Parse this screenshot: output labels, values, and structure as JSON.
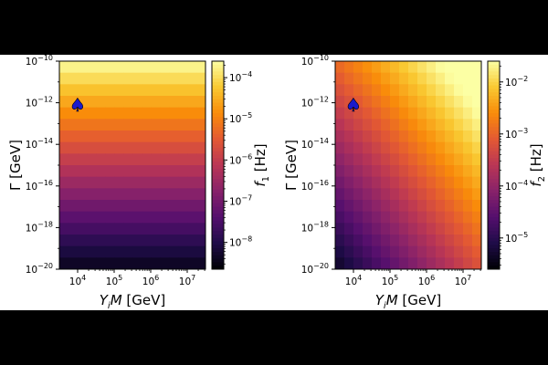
{
  "chart_data": [
    {
      "type": "heatmap",
      "id": "left",
      "xlabel": "Y_iM [GeV]",
      "ylabel": "Γ [GeV]",
      "x_log_range": [
        3.5,
        7.5
      ],
      "y_log_range": [
        -20,
        -10
      ],
      "x_ticks": [
        {
          "base": "10",
          "exp": "4",
          "value": 4
        },
        {
          "base": "10",
          "exp": "5",
          "value": 5
        },
        {
          "base": "10",
          "exp": "6",
          "value": 6
        },
        {
          "base": "10",
          "exp": "7",
          "value": 7
        }
      ],
      "y_ticks": [
        {
          "base": "10",
          "exp": "−10",
          "value": -10
        },
        {
          "base": "10",
          "exp": "−12",
          "value": -12
        },
        {
          "base": "10",
          "exp": "−14",
          "value": -14
        },
        {
          "base": "10",
          "exp": "−16",
          "value": -16
        },
        {
          "base": "10",
          "exp": "−18",
          "value": -18
        },
        {
          "base": "10",
          "exp": "−20",
          "value": -20
        }
      ],
      "colorbar": {
        "label_main": "f",
        "label_sub": "1",
        "label_unit": " [Hz]",
        "log_range": [
          -8.65,
          -3.6
        ],
        "ticks": [
          {
            "base": "10",
            "exp": "−4",
            "value": -4
          },
          {
            "base": "10",
            "exp": "−5",
            "value": -5
          },
          {
            "base": "10",
            "exp": "−6",
            "value": -6
          },
          {
            "base": "10",
            "exp": "−7",
            "value": -7
          },
          {
            "base": "10",
            "exp": "−8",
            "value": -8
          }
        ]
      },
      "grid": {
        "nx": 16,
        "ny": 18
      },
      "model": {
        "a": 0.0,
        "b": 0.5,
        "c": 1.0
      },
      "marker": {
        "symbol": "♠",
        "x_log": 4.0,
        "y_log": -12.1,
        "color": "#1a1acc"
      }
    },
    {
      "type": "heatmap",
      "id": "right",
      "xlabel": "Y_iM [GeV]",
      "ylabel": "Γ [GeV]",
      "x_log_range": [
        3.5,
        7.5
      ],
      "y_log_range": [
        -20,
        -10
      ],
      "x_ticks": [
        {
          "base": "10",
          "exp": "4",
          "value": 4
        },
        {
          "base": "10",
          "exp": "5",
          "value": 5
        },
        {
          "base": "10",
          "exp": "6",
          "value": 6
        },
        {
          "base": "10",
          "exp": "7",
          "value": 7
        }
      ],
      "y_ticks": [
        {
          "base": "10",
          "exp": "−10",
          "value": -10
        },
        {
          "base": "10",
          "exp": "−12",
          "value": -12
        },
        {
          "base": "10",
          "exp": "−14",
          "value": -14
        },
        {
          "base": "10",
          "exp": "−16",
          "value": -16
        },
        {
          "base": "10",
          "exp": "−18",
          "value": -18
        },
        {
          "base": "10",
          "exp": "−20",
          "value": -20
        }
      ],
      "colorbar": {
        "label_main": "f",
        "label_sub": "2",
        "label_unit": " [Hz]",
        "log_range": [
          -5.6,
          -1.6
        ],
        "ticks": [
          {
            "base": "10",
            "exp": "−2",
            "value": -2
          },
          {
            "base": "10",
            "exp": "−3",
            "value": -3
          },
          {
            "base": "10",
            "exp": "−4",
            "value": -4
          },
          {
            "base": "10",
            "exp": "−5",
            "value": -5
          }
        ]
      },
      "grid": {
        "nx": 16,
        "ny": 18
      },
      "model": {
        "a": 0.5,
        "b": 0.5,
        "c": 0.0
      },
      "marker": {
        "symbol": "♠",
        "x_log": 4.0,
        "y_log": -12.1,
        "color": "#1a1acc"
      }
    }
  ]
}
